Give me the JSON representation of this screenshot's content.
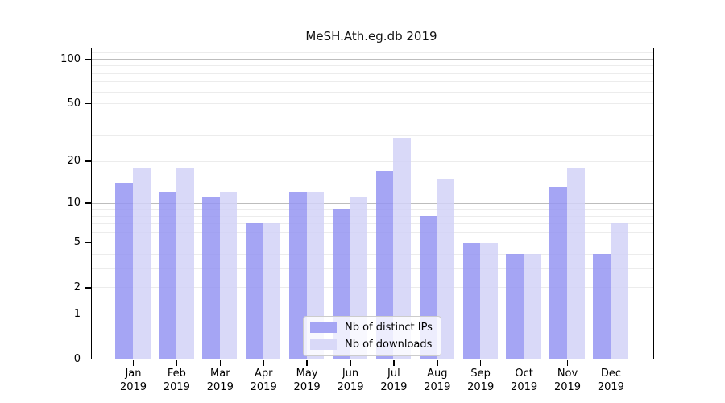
{
  "figure": {
    "title": "MeSH.Ath.eg.db 2019"
  },
  "chart_data": {
    "type": "bar",
    "title": "MeSH.Ath.eg.db 2019",
    "xlabel": "",
    "ylabel": "",
    "categories": [
      "Jan 2019",
      "Feb 2019",
      "Mar 2019",
      "Apr 2019",
      "May 2019",
      "Jun 2019",
      "Jul 2019",
      "Aug 2019",
      "Sep 2019",
      "Oct 2019",
      "Nov 2019",
      "Dec 2019"
    ],
    "x_tick_line1": [
      "Jan",
      "Feb",
      "Mar",
      "Apr",
      "May",
      "Jun",
      "Jul",
      "Aug",
      "Sep",
      "Oct",
      "Nov",
      "Dec"
    ],
    "x_tick_line2": "2019",
    "series": [
      {
        "name": "Nb of distinct IPs",
        "color": "#a5a5f4",
        "values": [
          14,
          12,
          11,
          7,
          12,
          9,
          17,
          8,
          5,
          4,
          13,
          4
        ]
      },
      {
        "name": "Nb of downloads",
        "color": "#d9d9f8",
        "values": [
          18,
          18,
          12,
          7,
          12,
          11,
          29,
          15,
          5,
          4,
          18,
          7
        ]
      }
    ],
    "yscale": "log1p",
    "ylim": [
      0,
      117
    ],
    "y_tick_values": [
      0,
      1,
      2,
      5,
      10,
      20,
      50,
      100
    ],
    "grid": true,
    "grid_major_values": [
      1,
      10,
      100
    ],
    "grid_minor_values": [
      2,
      3,
      4,
      5,
      6,
      7,
      8,
      9,
      20,
      30,
      40,
      50,
      60,
      70,
      80,
      90,
      110
    ],
    "legend_position": "lower center-left inside plot",
    "colors": {
      "grid_major": "#bdbdbd",
      "grid_minor": "#ececec",
      "axis": "#000000",
      "background": "#ffffff",
      "legend_border": "#cccccc"
    }
  }
}
